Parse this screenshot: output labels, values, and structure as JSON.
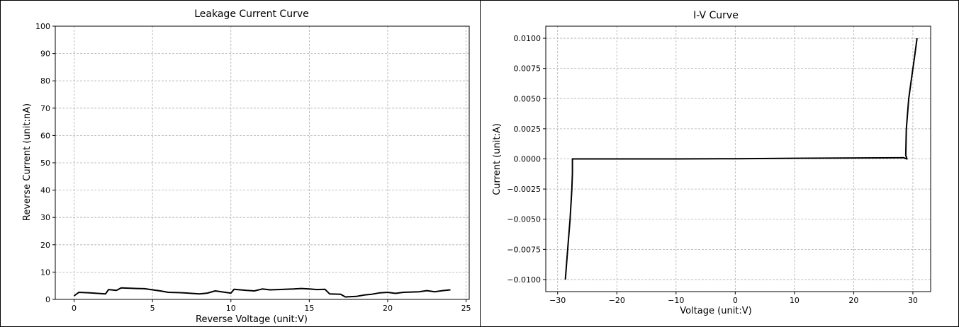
{
  "chart_data": [
    {
      "type": "line",
      "title": "Leakage Current Curve",
      "xlabel": "Reverse Voltage (unit:V)",
      "ylabel": "Reverse Current (unit:nA)",
      "xlim": [
        -1.2,
        25.2
      ],
      "ylim": [
        0,
        100
      ],
      "xticks": [
        "0",
        "5",
        "10",
        "15",
        "20",
        "25"
      ],
      "xtick_values": [
        0,
        5,
        10,
        15,
        20,
        25
      ],
      "yticks": [
        "0",
        "10",
        "20",
        "30",
        "40",
        "50",
        "60",
        "70",
        "80",
        "90",
        "100"
      ],
      "ytick_values": [
        0,
        10,
        20,
        30,
        40,
        50,
        60,
        70,
        80,
        90,
        100
      ],
      "grid": true,
      "series": [
        {
          "color": "#000000",
          "x": [
            0,
            0.3,
            1,
            1.5,
            2,
            2.2,
            2.7,
            3,
            4,
            4.5,
            5,
            5.5,
            6,
            7,
            8,
            8.5,
            9,
            10,
            10.2,
            11,
            11.5,
            12,
            12.5,
            13,
            14,
            14.5,
            15,
            15.5,
            16,
            16.3,
            17,
            17.3,
            18,
            18.5,
            19,
            19.5,
            20,
            20.5,
            21,
            22,
            22.5,
            23,
            23.5,
            24
          ],
          "y": [
            1.3,
            2.6,
            2.4,
            2.2,
            2.0,
            3.6,
            3.3,
            4.2,
            4.0,
            3.9,
            3.5,
            3.1,
            2.6,
            2.4,
            2.0,
            2.3,
            3.1,
            2.3,
            3.7,
            3.3,
            3.1,
            3.8,
            3.5,
            3.6,
            3.8,
            4.0,
            3.8,
            3.6,
            3.7,
            2.0,
            1.9,
            0.9,
            1.1,
            1.6,
            1.9,
            2.4,
            2.6,
            2.2,
            2.6,
            2.8,
            3.2,
            2.8,
            3.2,
            3.5
          ]
        }
      ]
    },
    {
      "type": "line",
      "title": "I-V Curve",
      "xlabel": "Voltage (unit:V)",
      "ylabel": "Current (unit:A)",
      "xlim": [
        -32,
        33
      ],
      "ylim": [
        -0.011,
        0.011
      ],
      "xticks": [
        "−30",
        "−20",
        "−10",
        "0",
        "10",
        "20",
        "30"
      ],
      "xtick_values": [
        -30,
        -20,
        -10,
        0,
        10,
        20,
        30
      ],
      "yticks": [
        "−0.0100",
        "−0.0075",
        "−0.0050",
        "−0.0025",
        "0.0000",
        "0.0025",
        "0.0050",
        "0.0075",
        "0.0100"
      ],
      "ytick_values": [
        -0.01,
        -0.0075,
        -0.005,
        -0.0025,
        0,
        0.0025,
        0.005,
        0.0075,
        0.01
      ],
      "grid": true,
      "series": [
        {
          "color": "#000000",
          "x": [
            -28.7,
            -28.3,
            -27.9,
            -27.6,
            -27.5,
            -27.5,
            -10,
            0,
            10,
            28.4,
            29,
            28.8,
            28.9,
            29.3,
            29.8,
            30.3,
            30.7
          ],
          "y": [
            -0.01,
            -0.0075,
            -0.005,
            -0.0025,
            -0.0012,
            0,
            0,
            2e-05,
            5e-05,
            0.0001,
            0,
            0.0003,
            0.0025,
            0.005,
            0.0068,
            0.0085,
            0.01
          ]
        }
      ]
    }
  ]
}
